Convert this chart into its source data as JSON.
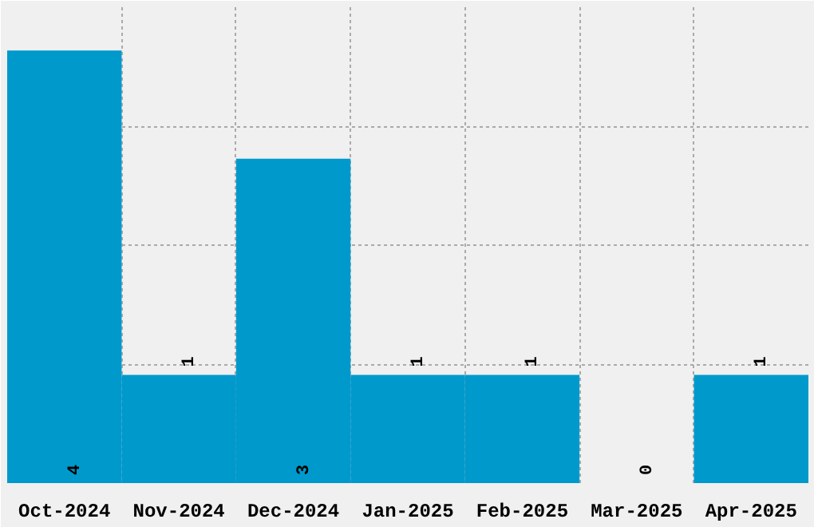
{
  "chart_data": {
    "type": "bar",
    "categories": [
      "Oct-2024",
      "Nov-2024",
      "Dec-2024",
      "Jan-2025",
      "Feb-2025",
      "Mar-2025",
      "Apr-2025"
    ],
    "values": [
      4,
      1,
      3,
      1,
      1,
      0,
      1
    ],
    "color": "#0099cc",
    "data_labels": true,
    "ylim": [
      0,
      4.4
    ],
    "yticks": [
      {
        "value": 0,
        "label": null
      },
      {
        "value": 1.1,
        "label": null
      },
      {
        "value": 2.2,
        "label": null
      },
      {
        "value": 3.3,
        "label": null
      },
      {
        "value": 4.4,
        "label": null
      }
    ],
    "grid": true,
    "tick_labels": "x"
  }
}
